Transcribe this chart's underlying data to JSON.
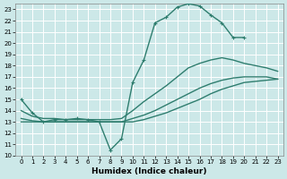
{
  "xlabel": "Humidex (Indice chaleur)",
  "xlim": [
    -0.5,
    23.5
  ],
  "ylim": [
    10,
    23.5
  ],
  "xticks": [
    0,
    1,
    2,
    3,
    4,
    5,
    6,
    7,
    8,
    9,
    10,
    11,
    12,
    13,
    14,
    15,
    16,
    17,
    18,
    19,
    20,
    21,
    22,
    23
  ],
  "yticks": [
    10,
    11,
    12,
    13,
    14,
    15,
    16,
    17,
    18,
    19,
    20,
    21,
    22,
    23
  ],
  "bg_color": "#cce8e8",
  "grid_color": "#ffffff",
  "line_color": "#2e7d6e",
  "curves": [
    {
      "x": [
        0,
        1,
        2,
        3,
        4,
        5,
        6,
        7,
        8,
        9,
        10,
        11,
        12,
        13,
        14,
        15,
        16,
        17,
        18,
        19,
        20
      ],
      "y": [
        15.0,
        13.8,
        13.0,
        13.2,
        13.2,
        13.3,
        13.2,
        13.0,
        10.5,
        11.5,
        16.5,
        18.5,
        21.8,
        22.3,
        23.2,
        23.5,
        23.3,
        22.5,
        21.8,
        20.5,
        20.5
      ],
      "has_marker": true,
      "markersize": 2.5,
      "linewidth": 1.0
    },
    {
      "x": [
        0,
        1,
        2,
        3,
        4,
        5,
        6,
        7,
        8,
        9,
        10,
        11,
        12,
        13,
        14,
        15,
        16,
        17,
        18,
        19,
        20,
        21,
        22,
        23
      ],
      "y": [
        14.0,
        13.5,
        13.3,
        13.3,
        13.2,
        13.2,
        13.2,
        13.2,
        13.2,
        13.3,
        14.0,
        14.8,
        15.5,
        16.2,
        17.0,
        17.8,
        18.2,
        18.5,
        18.7,
        18.5,
        18.2,
        18.0,
        17.8,
        17.5
      ],
      "has_marker": false,
      "linewidth": 1.0
    },
    {
      "x": [
        0,
        1,
        2,
        3,
        4,
        5,
        6,
        7,
        8,
        9,
        10,
        11,
        12,
        13,
        14,
        15,
        16,
        17,
        18,
        19,
        20,
        21,
        22,
        23
      ],
      "y": [
        13.3,
        13.1,
        13.0,
        13.0,
        13.0,
        13.0,
        13.0,
        13.0,
        13.0,
        13.0,
        13.3,
        13.6,
        14.0,
        14.5,
        15.0,
        15.5,
        16.0,
        16.4,
        16.7,
        16.9,
        17.0,
        17.0,
        17.0,
        16.8
      ],
      "has_marker": false,
      "linewidth": 1.0
    },
    {
      "x": [
        0,
        1,
        2,
        3,
        4,
        5,
        6,
        7,
        8,
        9,
        10,
        11,
        12,
        13,
        14,
        15,
        16,
        17,
        18,
        19,
        20,
        21,
        22,
        23
      ],
      "y": [
        13.0,
        13.0,
        13.0,
        13.0,
        13.0,
        13.0,
        13.0,
        13.0,
        13.0,
        13.0,
        13.0,
        13.2,
        13.5,
        13.8,
        14.2,
        14.6,
        15.0,
        15.5,
        15.9,
        16.2,
        16.5,
        16.6,
        16.7,
        16.8
      ],
      "has_marker": false,
      "linewidth": 1.0
    }
  ]
}
